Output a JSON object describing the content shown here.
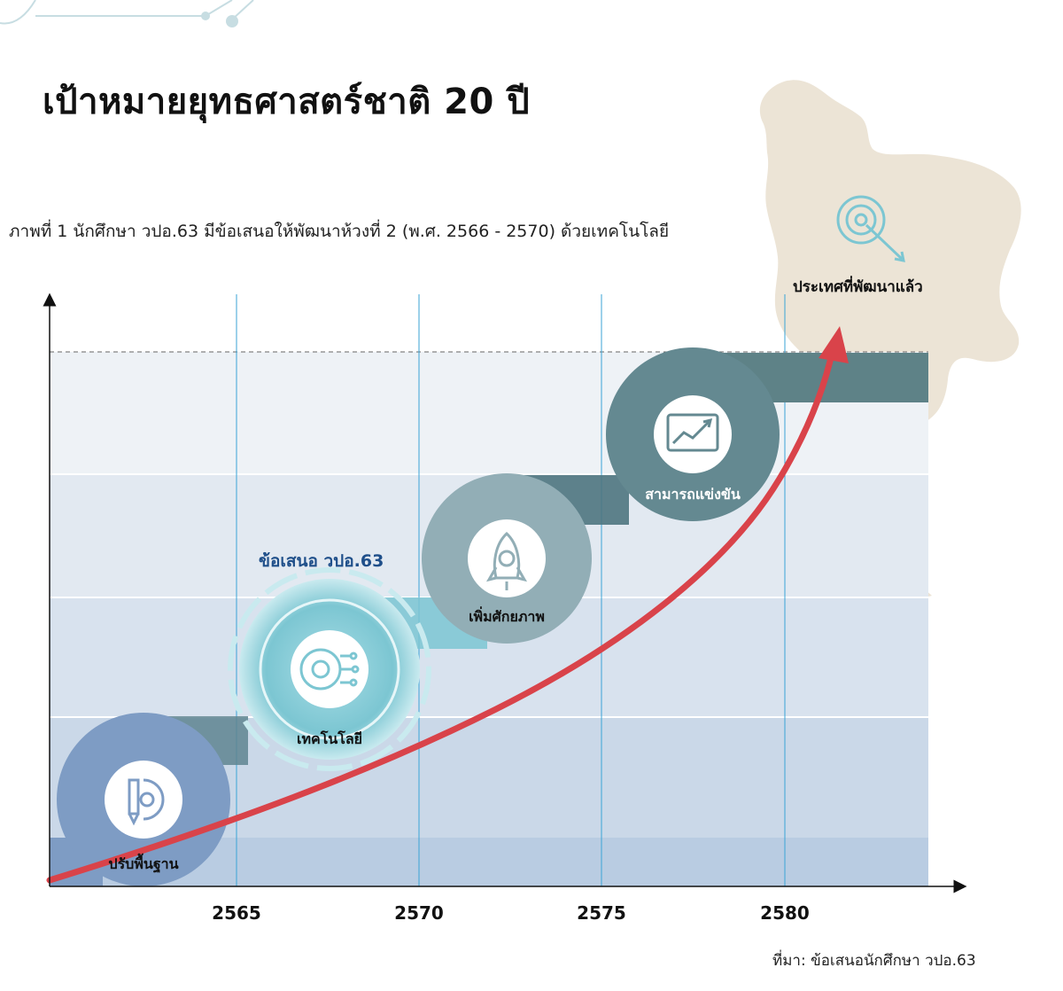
{
  "header": {
    "title": "เป้าหมายยุทธศาสตร์ชาติ 20 ปี",
    "subtitle": "ภาพที่ 1 นักศึกษา วปอ.63 มีข้อเสนอให้พัฒนาห้วงที่ 2 (พ.ศ. 2566 - 2570) ด้วยเทคโนโลยี"
  },
  "goal": {
    "label": "ประเทศที่พัฒนาแล้ว",
    "icon": "target-icon"
  },
  "proposal_label": "ข้อเสนอ วปอ.63",
  "stages": [
    {
      "label": "ปรับพื้นฐาน",
      "icon": "pencil-gear-icon",
      "color": "#7e9cc4"
    },
    {
      "label": "เทคโนโลยี",
      "icon": "circuit-gear-icon",
      "color": "#7cc6d2"
    },
    {
      "label": "เพิ่มศักยภาพ",
      "icon": "rocket-icon",
      "color": "#92aeb6"
    },
    {
      "label": "สามารถแข่งขัน",
      "icon": "growth-chart-icon",
      "color": "#648991"
    }
  ],
  "years": [
    "2565",
    "2570",
    "2575",
    "2580"
  ],
  "source": "ที่มา: ข้อเสนอนักศึกษา วปอ.63",
  "colors": {
    "growth_arrow": "#d9434a",
    "map": "#ece4d6",
    "gridline": "#3aa3d6",
    "proposal_text": "#1f4f8a"
  }
}
